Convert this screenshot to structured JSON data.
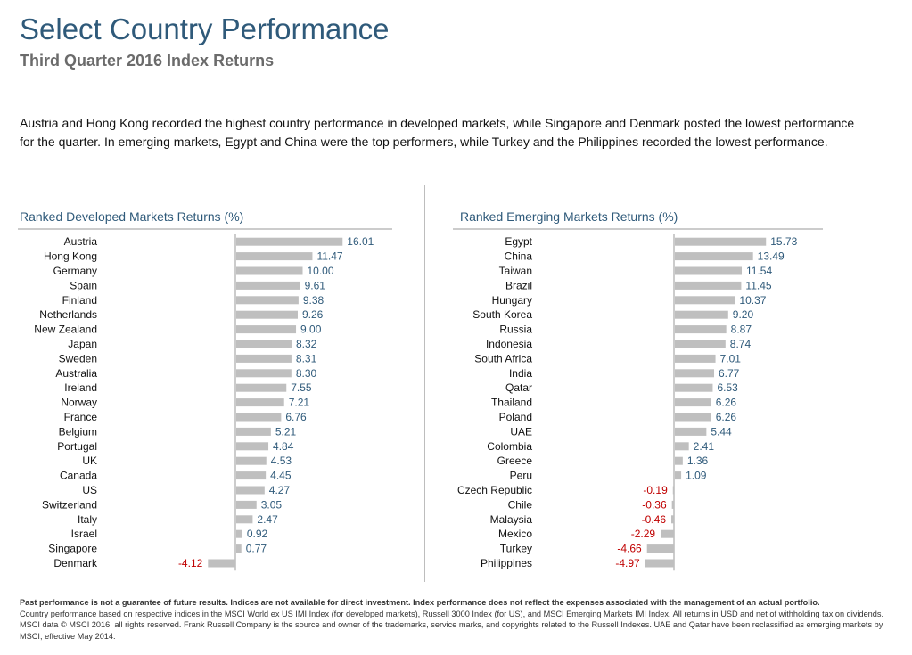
{
  "header": {
    "title": "Select Country Performance",
    "subtitle": "Third Quarter 2016 Index Returns"
  },
  "summary": "Austria and Hong Kong recorded the highest country performance in developed markets, while Singapore and Denmark posted the lowest performance for the quarter. In emerging markets, Egypt and China were the top performers, while Turkey and the Philippines recorded the lowest performance.",
  "colors": {
    "bar": "#bfbfbf",
    "positive_label": "#2f5a7a",
    "negative_label": "#c00000",
    "title": "#2f5a7a"
  },
  "chart_data": [
    {
      "type": "bar",
      "orientation": "horizontal",
      "title": "Ranked Developed Markets Returns (%)",
      "categories": [
        "Austria",
        "Hong Kong",
        "Germany",
        "Spain",
        "Finland",
        "Netherlands",
        "New Zealand",
        "Japan",
        "Sweden",
        "Australia",
        "Ireland",
        "Norway",
        "France",
        "Belgium",
        "Portugal",
        "UK",
        "Canada",
        "US",
        "Switzerland",
        "Italy",
        "Israel",
        "Singapore",
        "Denmark"
      ],
      "values": [
        16.01,
        11.47,
        10.0,
        9.61,
        9.38,
        9.26,
        9.0,
        8.32,
        8.31,
        8.3,
        7.55,
        7.21,
        6.76,
        5.21,
        4.84,
        4.53,
        4.45,
        4.27,
        3.05,
        2.47,
        0.92,
        0.77,
        -4.12
      ],
      "labels": [
        "16.01",
        "11.47",
        "10.00",
        "9.61",
        "9.38",
        "9.26",
        "9.00",
        "8.32",
        "8.31",
        "8.30",
        "7.55",
        "7.21",
        "6.76",
        "5.21",
        "4.84",
        "4.53",
        "4.45",
        "4.27",
        "3.05",
        "2.47",
        "0.92",
        "0.77",
        "-4.12"
      ]
    },
    {
      "type": "bar",
      "orientation": "horizontal",
      "title": "Ranked Emerging Markets Returns (%)",
      "categories": [
        "Egypt",
        "China",
        "Taiwan",
        "Brazil",
        "Hungary",
        "South Korea",
        "Russia",
        "Indonesia",
        "South Africa",
        "India",
        "Qatar",
        "Thailand",
        "Poland",
        "UAE",
        "Colombia",
        "Greece",
        "Peru",
        "Czech Republic",
        "Chile",
        "Malaysia",
        "Mexico",
        "Turkey",
        "Philippines"
      ],
      "values": [
        15.73,
        13.49,
        11.54,
        11.45,
        10.37,
        9.2,
        8.87,
        8.74,
        7.01,
        6.77,
        6.53,
        6.26,
        6.26,
        5.44,
        2.41,
        1.36,
        1.09,
        -0.19,
        -0.36,
        -0.46,
        -2.29,
        -4.66,
        -4.97
      ],
      "labels": [
        "15.73",
        "13.49",
        "11.54",
        "11.45",
        "10.37",
        "9.20",
        "8.87",
        "8.74",
        "7.01",
        "6.77",
        "6.53",
        "6.26",
        "6.26",
        "5.44",
        "2.41",
        "1.36",
        "1.09",
        "-0.19",
        "-0.36",
        "-0.46",
        "-2.29",
        "-4.66",
        "-4.97"
      ]
    }
  ],
  "footnote": {
    "bold": "Past performance is not a guarantee of future results. Indices are not available for direct investment. Index performance does not reflect the expenses associated with the management of an actual portfolio.",
    "text": "Country performance based on respective indices in the MSCI World ex US IMI Index (for developed markets), Russell 3000 Index (for US), and MSCI Emerging Markets IMI Index. All returns in USD and net of withholding tax on dividends. MSCI data © MSCI 2016, all rights reserved. Frank Russell Company is the source and owner of the trademarks, service marks, and copyrights related to the Russell Indexes. UAE and Qatar have been reclassified as emerging markets by MSCI, effective May 2014."
  }
}
